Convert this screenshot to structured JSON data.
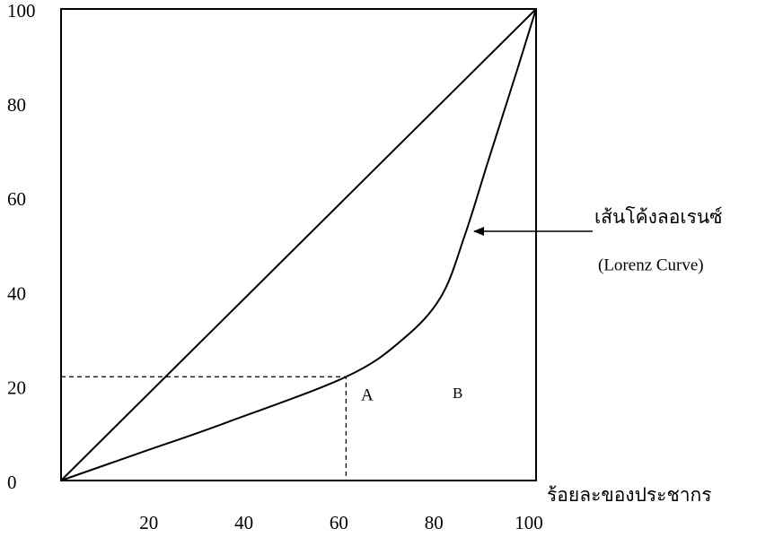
{
  "chart_data": {
    "type": "line",
    "x_label": "ร้อยละของประชากร",
    "series": [
      {
        "color": "#000000",
        "x": [
          0,
          100
        ],
        "values": [
          0,
          100
        ]
      },
      {
        "color": "#000000",
        "x": [
          0,
          17,
          34,
          60,
          72,
          80,
          85,
          90,
          96,
          100
        ],
        "values": [
          0,
          6,
          12,
          22,
          30,
          39,
          52,
          68,
          87,
          100
        ]
      }
    ],
    "reference_point": {
      "x": 60,
      "y": 22
    },
    "annotations": [
      {
        "text": "เส้นโค้งลอเรนซ์"
      },
      {
        "text": "(Lorenz Curve)"
      },
      {
        "text": "A"
      },
      {
        "text": "B"
      }
    ],
    "xlim": [
      0,
      100
    ],
    "xticks": [
      20,
      40,
      60,
      80,
      100
    ],
    "ylim": [
      0,
      100
    ],
    "yticks": [
      0,
      20,
      40,
      60,
      80,
      100
    ]
  }
}
